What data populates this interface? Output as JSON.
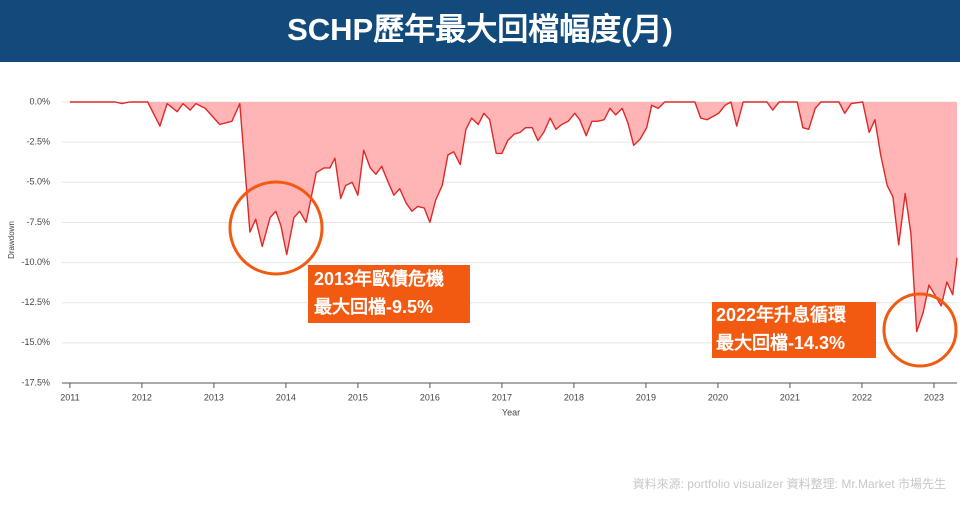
{
  "chart_data": {
    "type": "area",
    "title": "SCHP歷年最大回檔幅度(月)",
    "x_label": "Year",
    "y_label": "Drawdown",
    "source": "資料來源:   portfolio  visualizer    資料整理: Mr.Market  市場先生",
    "color": "#e02828",
    "fill": "#ffb5b5",
    "x": [
      2011.0,
      2011.63,
      2011.72,
      2011.83,
      2012.08,
      2012.25,
      2012.35,
      2012.49,
      2012.57,
      2012.67,
      2012.75,
      2012.88,
      2013.08,
      2013.25,
      2013.36,
      2013.5,
      2013.58,
      2013.67,
      2013.78,
      2013.86,
      2013.93,
      2014.01,
      2014.11,
      2014.19,
      2014.28,
      2014.42,
      2014.53,
      2014.61,
      2014.68,
      2014.76,
      2014.83,
      2014.92,
      2015.0,
      2015.08,
      2015.17,
      2015.25,
      2015.33,
      2015.42,
      2015.5,
      2015.58,
      2015.67,
      2015.75,
      2015.83,
      2015.92,
      2016.0,
      2016.08,
      2016.17,
      2016.25,
      2016.33,
      2016.42,
      2016.5,
      2016.58,
      2016.67,
      2016.75,
      2016.83,
      2016.92,
      2017.0,
      2017.08,
      2017.17,
      2017.25,
      2017.33,
      2017.42,
      2017.5,
      2017.58,
      2017.67,
      2017.75,
      2017.83,
      2017.92,
      2018.01,
      2018.08,
      2018.17,
      2018.25,
      2018.33,
      2018.42,
      2018.5,
      2018.58,
      2018.67,
      2018.75,
      2018.83,
      2018.92,
      2019.01,
      2019.08,
      2019.17,
      2019.26,
      2019.68,
      2019.76,
      2019.85,
      2019.93,
      2020.01,
      2020.1,
      2020.18,
      2020.26,
      2020.35,
      2020.68,
      2020.76,
      2020.85,
      2021.1,
      2021.18,
      2021.26,
      2021.35,
      2021.43,
      2021.68,
      2021.76,
      2021.85,
      2022.01,
      2022.1,
      2022.18,
      2022.26,
      2022.35,
      2022.43,
      2022.51,
      2022.6,
      2022.68,
      2022.76,
      2022.85,
      2022.93,
      2023.01,
      2023.1,
      2023.18,
      2023.26,
      2023.32
    ],
    "values": [
      0,
      0,
      -0.1,
      0,
      0,
      -1.5,
      -0.1,
      -0.6,
      -0.1,
      -0.5,
      -0.1,
      -0.4,
      -1.4,
      -1.2,
      -0.1,
      -8.1,
      -7.3,
      -9.0,
      -7.2,
      -6.8,
      -7.7,
      -9.5,
      -7.2,
      -6.8,
      -7.5,
      -4.4,
      -4.1,
      -4.1,
      -3.5,
      -6.0,
      -5.2,
      -5.0,
      -5.8,
      -3.0,
      -4.1,
      -4.5,
      -4.0,
      -5.0,
      -5.8,
      -5.4,
      -6.3,
      -6.8,
      -6.5,
      -6.6,
      -7.5,
      -6.1,
      -5.2,
      -3.3,
      -3.1,
      -3.9,
      -1.7,
      -1.0,
      -1.4,
      -0.7,
      -1.1,
      -3.2,
      -3.2,
      -2.4,
      -2.0,
      -1.9,
      -1.6,
      -1.6,
      -2.4,
      -1.9,
      -1.0,
      -1.7,
      -1.4,
      -1.2,
      -0.7,
      -1.1,
      -2.1,
      -1.2,
      -1.2,
      -1.1,
      -0.4,
      -0.8,
      -0.4,
      -1.3,
      -2.7,
      -2.3,
      -1.6,
      -0.2,
      -0.4,
      0,
      0,
      -1.0,
      -1.1,
      -0.9,
      -0.7,
      -0.2,
      0,
      -1.5,
      0,
      0,
      -0.5,
      0,
      0,
      -1.6,
      -1.7,
      -0.4,
      0,
      0,
      -0.7,
      -0.1,
      0,
      -1.9,
      -1.1,
      -3.3,
      -5.2,
      -5.9,
      -8.9,
      -5.7,
      -8.2,
      -14.3,
      -13.1,
      -11.4,
      -12.0,
      -12.7,
      -11.2,
      -12.0,
      -9.7
    ],
    "xlim": [
      2010.89,
      2023.32
    ],
    "xticks": [
      2011,
      2012,
      2013,
      2014,
      2015,
      2016,
      2017,
      2018,
      2019,
      2020,
      2021,
      2022,
      2023
    ],
    "ylim": [
      -17.5,
      0.5
    ],
    "yticks": [
      {
        "value": 0,
        "label": "0.0%"
      },
      {
        "value": -2.5,
        "label": "-2.5%"
      },
      {
        "value": -5,
        "label": "-5.0%"
      },
      {
        "value": -7.5,
        "label": "-7.5%"
      },
      {
        "value": -10,
        "label": "-10.0%"
      },
      {
        "value": -12.5,
        "label": "-12.5%"
      },
      {
        "value": -15,
        "label": "-15.0%"
      },
      {
        "value": -17.5,
        "label": "-17.5%"
      }
    ],
    "grid": true,
    "annotations": [
      {
        "lines": [
          "2013年歐債危機",
          "最大回檔-9.5%"
        ]
      },
      {
        "lines": [
          "2022年升息循環",
          "最大回檔-14.3%"
        ]
      }
    ]
  }
}
